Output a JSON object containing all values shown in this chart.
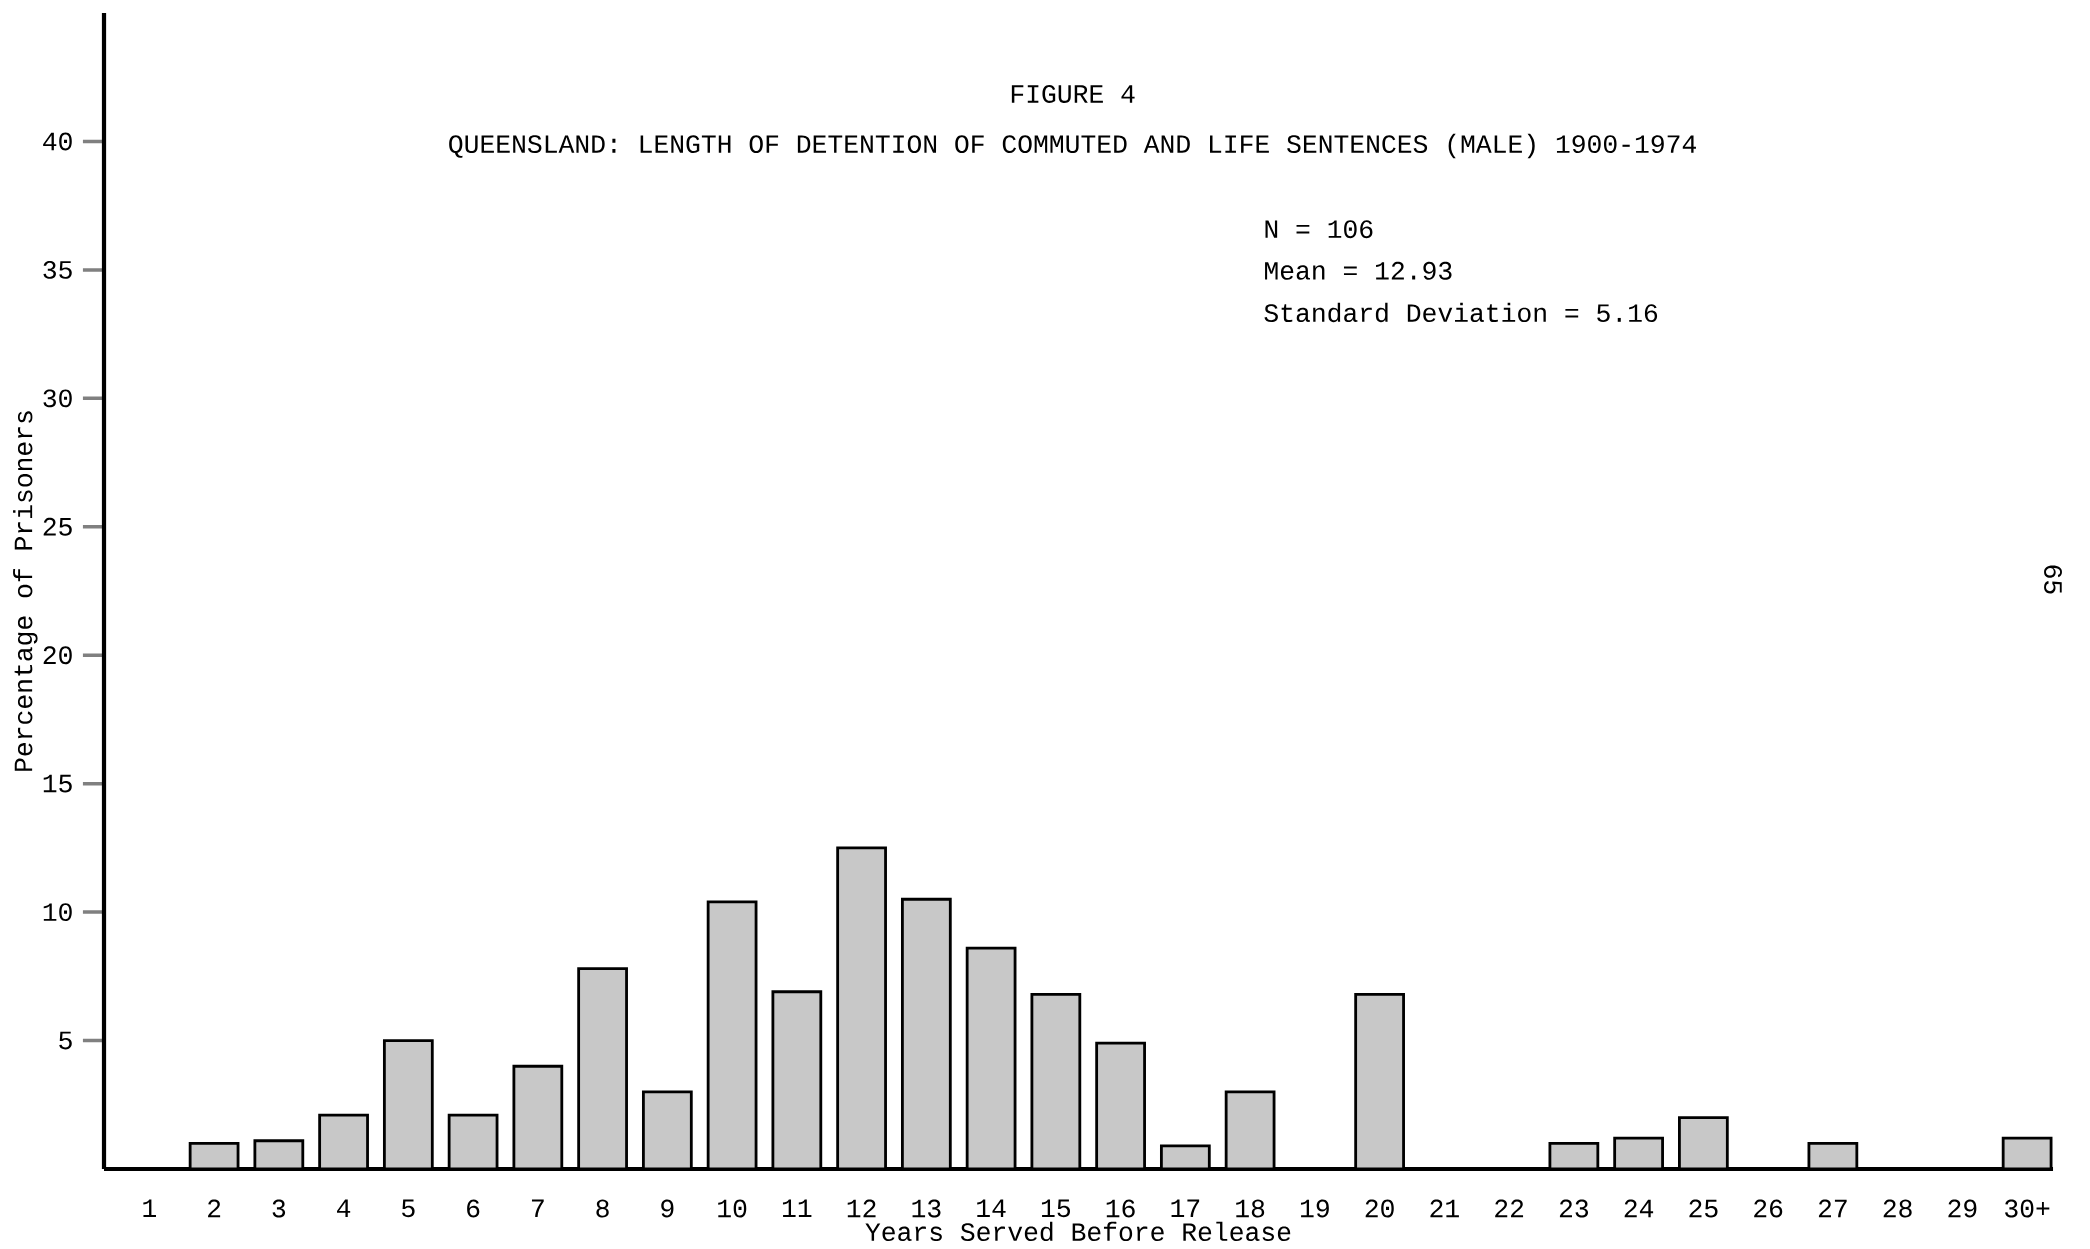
{
  "chart_data": {
    "type": "bar",
    "title": "FIGURE 4",
    "subtitle": "QUEENSLAND:  LENGTH OF DETENTION OF COMMUTED AND LIFE SENTENCES (MALE) 1900-1974",
    "xlabel": "Years Served Before Release",
    "ylabel": "Percentage of Prisoners",
    "categories": [
      "1",
      "2",
      "3",
      "4",
      "5",
      "6",
      "7",
      "8",
      "9",
      "10",
      "11",
      "12",
      "13",
      "14",
      "15",
      "16",
      "17",
      "18",
      "19",
      "20",
      "21",
      "22",
      "23",
      "24",
      "25",
      "26",
      "27",
      "28",
      "29",
      "30+"
    ],
    "values": [
      0,
      1.0,
      1.1,
      2.1,
      5.0,
      2.1,
      4.0,
      7.8,
      3.0,
      10.4,
      6.9,
      12.5,
      10.5,
      8.6,
      6.8,
      4.9,
      0.9,
      3.0,
      0,
      6.8,
      0,
      0,
      1.0,
      1.2,
      2.0,
      0,
      1.0,
      0,
      0,
      1.2
    ],
    "color": "#c8c8c8",
    "ylim": [
      0,
      45
    ],
    "yticks": [
      5,
      10,
      15,
      20,
      25,
      30,
      35,
      40
    ],
    "annotations": [
      "N = 106",
      "Mean = 12.93",
      "Standard Deviation = 5.16",
      "65"
    ]
  }
}
